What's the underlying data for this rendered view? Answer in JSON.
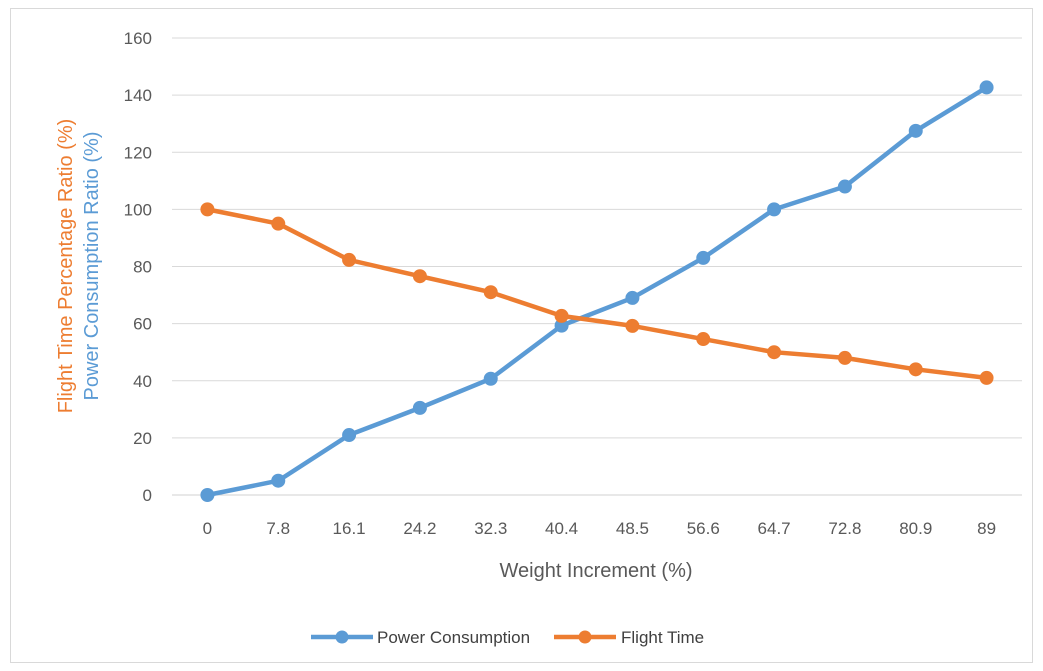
{
  "chart_data": {
    "type": "line",
    "categories": [
      "0",
      "7.8",
      "16.1",
      "24.2",
      "32.3",
      "40.4",
      "48.5",
      "56.6",
      "64.7",
      "72.8",
      "80.9",
      "89"
    ],
    "xlabel": "Weight Increment (%)",
    "ylabel_lines": [
      {
        "text": "Flight Time Percentage Ratio (%)",
        "color": "#ed7d31"
      },
      {
        "text": "Power Consumption Ratio (%)",
        "color": "#5b9bd5"
      }
    ],
    "ylim": [
      0,
      160
    ],
    "yticks": [
      0,
      20,
      40,
      60,
      80,
      100,
      120,
      140,
      160
    ],
    "grid": true,
    "legend_position": "bottom",
    "series": [
      {
        "name": "Power Consumption",
        "color": "#5b9bd5",
        "values": [
          0,
          5,
          21,
          30.5,
          40.7,
          59.3,
          69,
          83,
          100,
          108,
          127.5,
          142.7
        ]
      },
      {
        "name": "Flight Time",
        "color": "#ed7d31",
        "values": [
          100,
          95,
          82.3,
          76.6,
          71,
          62.7,
          59.2,
          54.6,
          50,
          48,
          44,
          41
        ]
      }
    ]
  }
}
